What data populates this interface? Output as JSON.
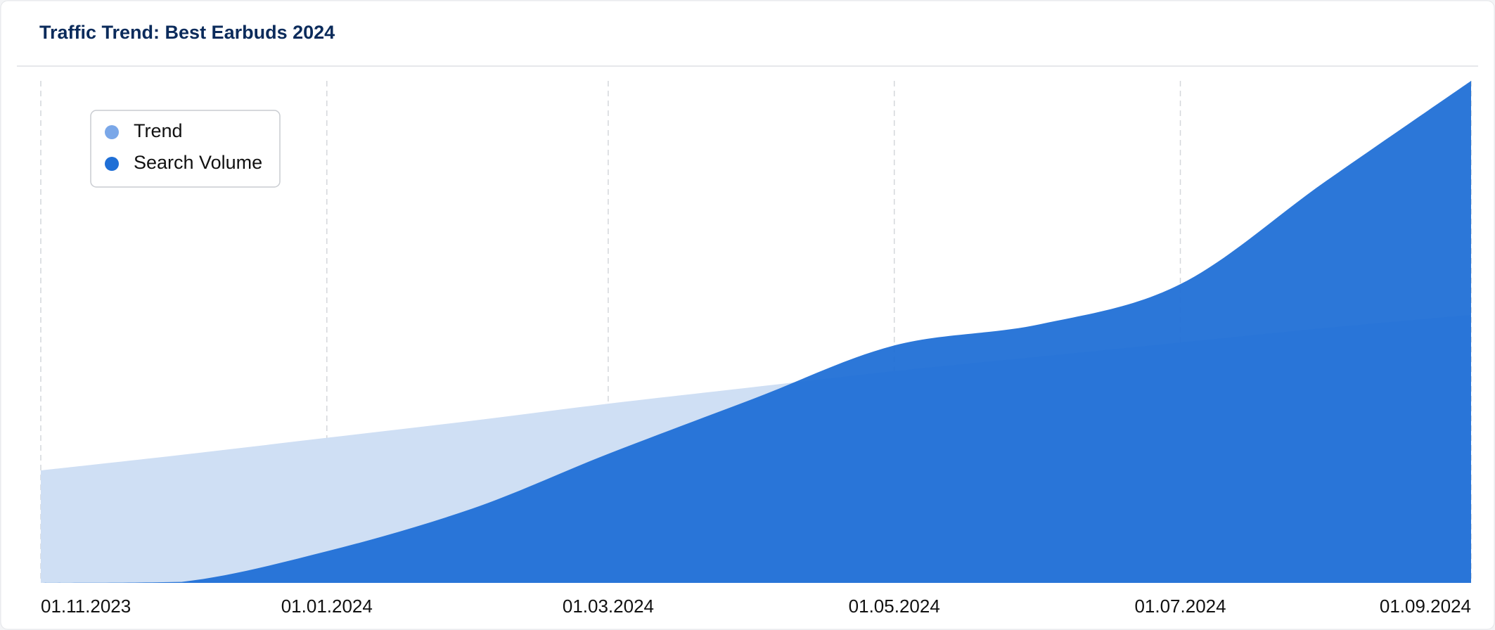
{
  "chart_data": {
    "type": "area",
    "title": "Traffic Trend: Best Earbuds 2024",
    "x": [
      "01.11.2023",
      "01.12.2023",
      "01.01.2024",
      "01.02.2024",
      "01.03.2024",
      "01.04.2024",
      "01.05.2024",
      "01.06.2024",
      "01.07.2024",
      "01.08.2024",
      "01.09.2024"
    ],
    "series": [
      {
        "name": "Trend",
        "color": "#cfdff4",
        "values": [
          22.4,
          25.5,
          28.9,
          32.3,
          35.7,
          39.0,
          42.2,
          45.1,
          47.9,
          50.8,
          53.4
        ]
      },
      {
        "name": "Search Volume",
        "color": "#1f6fd6",
        "values": [
          0,
          0.2,
          6.3,
          14.8,
          25.7,
          36.7,
          47.3,
          51.5,
          59.5,
          80,
          100
        ]
      }
    ],
    "xlim": [
      "01.11.2023",
      "01.09.2024"
    ],
    "xticks": [
      "01.11.2023",
      "01.01.2024",
      "01.03.2024",
      "01.05.2024",
      "01.07.2024",
      "01.09.2024"
    ],
    "ylim": [
      0,
      100
    ],
    "grid": true,
    "legend": "upper left"
  }
}
